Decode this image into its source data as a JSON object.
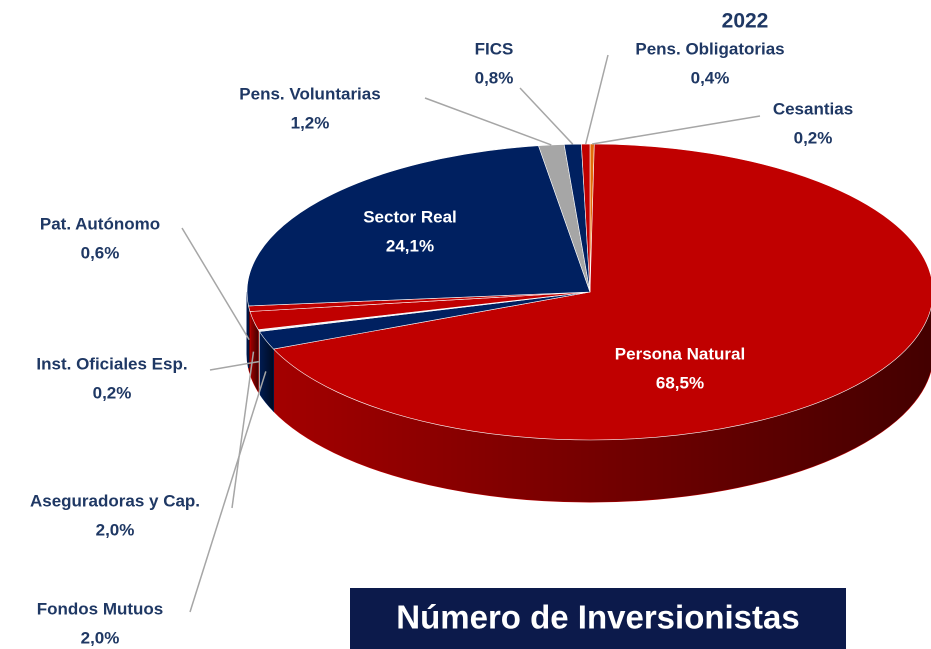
{
  "chart_data": {
    "type": "pie",
    "title": "2022",
    "annotation": "Número de Inversionistas",
    "categories": [
      "Cesantias",
      "Persona Natural",
      "Fondos Mutuos",
      "Inst. Oficiales Esp.",
      "Aseguradoras y Cap.",
      "Pat. Autónomo",
      "Sector Real",
      "Pens. Voluntarias",
      "FICS",
      "Pens. Obligatorias"
    ],
    "values": [
      0.2,
      68.5,
      2.0,
      0.2,
      2.0,
      0.6,
      24.1,
      1.2,
      0.8,
      0.4
    ],
    "value_labels": [
      "0,2%",
      "68,5%",
      "2,0%",
      "0,2%",
      "2,0%",
      "0,6%",
      "24,1%",
      "1,2%",
      "0,8%",
      "0,4%"
    ],
    "colors": [
      "#e46c0a",
      "#c00000",
      "#002060",
      "#f2f2f2",
      "#c00000",
      "#c00000",
      "#002060",
      "#a6a6a6",
      "#002060",
      "#c00000"
    ]
  }
}
